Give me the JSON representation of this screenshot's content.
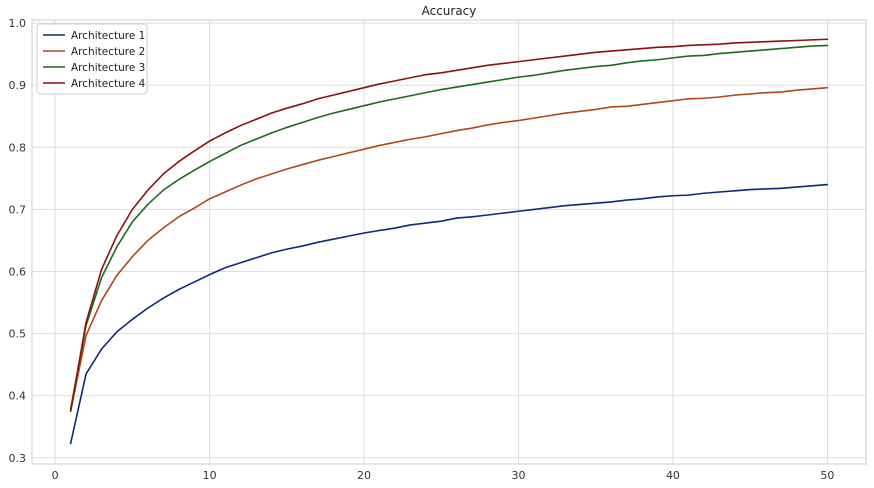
{
  "chart_data": {
    "type": "line",
    "title": "Accuracy",
    "xlabel": "",
    "ylabel": "",
    "xlim": [
      -1.5,
      52.5
    ],
    "ylim": [
      0.29,
      1.005
    ],
    "xticks": [
      0,
      10,
      20,
      30,
      40,
      50
    ],
    "yticks": [
      0.3,
      0.4,
      0.5,
      0.6,
      0.7,
      0.8,
      0.9,
      1.0
    ],
    "xtick_labels": [
      "0",
      "10",
      "20",
      "30",
      "40",
      "50"
    ],
    "ytick_labels": [
      "0.3",
      "0.4",
      "0.5",
      "0.6",
      "0.7",
      "0.8",
      "0.9",
      "1.0"
    ],
    "grid": true,
    "legend_position": "top-left",
    "x": [
      1,
      2,
      3,
      4,
      5,
      6,
      7,
      8,
      9,
      10,
      11,
      12,
      13,
      14,
      15,
      16,
      17,
      18,
      19,
      20,
      21,
      22,
      23,
      24,
      25,
      26,
      27,
      28,
      29,
      30,
      31,
      32,
      33,
      34,
      35,
      36,
      37,
      38,
      39,
      40,
      41,
      42,
      43,
      44,
      45,
      46,
      47,
      48,
      49,
      50
    ],
    "series": [
      {
        "name": "Architecture 1",
        "color": "#0c2a7a",
        "values": [
          0.323,
          0.435,
          0.475,
          0.503,
          0.523,
          0.541,
          0.557,
          0.571,
          0.583,
          0.595,
          0.606,
          0.614,
          0.622,
          0.63,
          0.636,
          0.641,
          0.647,
          0.652,
          0.657,
          0.662,
          0.666,
          0.67,
          0.675,
          0.678,
          0.681,
          0.686,
          0.688,
          0.691,
          0.694,
          0.697,
          0.7,
          0.703,
          0.706,
          0.708,
          0.71,
          0.712,
          0.715,
          0.717,
          0.72,
          0.722,
          0.723,
          0.726,
          0.728,
          0.73,
          0.732,
          0.733,
          0.734,
          0.736,
          0.738,
          0.74
        ]
      },
      {
        "name": "Architecture 2",
        "color": "#b0471b",
        "values": [
          0.375,
          0.497,
          0.553,
          0.594,
          0.624,
          0.65,
          0.67,
          0.688,
          0.702,
          0.717,
          0.728,
          0.739,
          0.749,
          0.757,
          0.765,
          0.772,
          0.779,
          0.785,
          0.791,
          0.797,
          0.803,
          0.808,
          0.813,
          0.817,
          0.822,
          0.827,
          0.831,
          0.836,
          0.84,
          0.843,
          0.847,
          0.851,
          0.855,
          0.858,
          0.861,
          0.865,
          0.866,
          0.869,
          0.872,
          0.875,
          0.878,
          0.879,
          0.881,
          0.884,
          0.886,
          0.888,
          0.889,
          0.892,
          0.894,
          0.896
        ]
      },
      {
        "name": "Architecture 3",
        "color": "#1b6b1b",
        "values": [
          0.378,
          0.513,
          0.59,
          0.64,
          0.68,
          0.708,
          0.731,
          0.748,
          0.763,
          0.777,
          0.79,
          0.803,
          0.813,
          0.823,
          0.832,
          0.84,
          0.848,
          0.855,
          0.861,
          0.867,
          0.873,
          0.878,
          0.883,
          0.888,
          0.893,
          0.897,
          0.901,
          0.905,
          0.909,
          0.913,
          0.916,
          0.92,
          0.924,
          0.927,
          0.93,
          0.932,
          0.936,
          0.939,
          0.941,
          0.944,
          0.947,
          0.948,
          0.951,
          0.953,
          0.955,
          0.957,
          0.959,
          0.961,
          0.963,
          0.964
        ]
      },
      {
        "name": "Architecture 4",
        "color": "#8b1010",
        "values": [
          0.375,
          0.518,
          0.603,
          0.658,
          0.7,
          0.731,
          0.757,
          0.777,
          0.794,
          0.81,
          0.823,
          0.835,
          0.845,
          0.855,
          0.863,
          0.87,
          0.878,
          0.884,
          0.89,
          0.896,
          0.902,
          0.907,
          0.912,
          0.917,
          0.92,
          0.924,
          0.928,
          0.932,
          0.935,
          0.938,
          0.941,
          0.944,
          0.947,
          0.95,
          0.953,
          0.955,
          0.957,
          0.959,
          0.961,
          0.962,
          0.964,
          0.965,
          0.966,
          0.968,
          0.969,
          0.97,
          0.971,
          0.972,
          0.973,
          0.974
        ]
      }
    ]
  }
}
